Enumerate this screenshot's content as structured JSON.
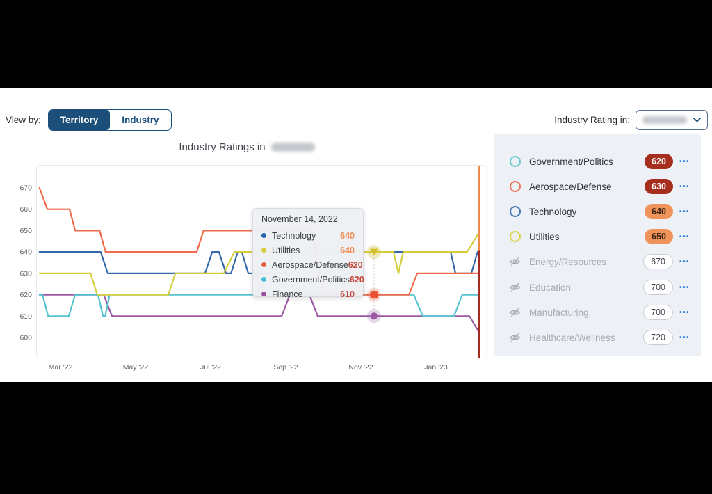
{
  "header": {
    "view_by_label": "View by:",
    "toggle": [
      {
        "label": "Territory",
        "selected": true
      },
      {
        "label": "Industry",
        "selected": false
      }
    ],
    "rating_in_label": "Industry Rating in:",
    "rating_in_value_redacted": true
  },
  "title": {
    "text": "Industry Ratings in",
    "suffix_redacted": true
  },
  "sidebar": {
    "more_label": "•••",
    "items": [
      {
        "label": "Government/Politics",
        "value": "620",
        "state": "visible",
        "color": "#6cc9cf",
        "badge": "dark-red"
      },
      {
        "label": "Aerospace/Defense",
        "value": "630",
        "state": "visible",
        "color": "#ee7257",
        "badge": "dark-red"
      },
      {
        "label": "Technology",
        "value": "640",
        "state": "visible",
        "color": "#4076b4",
        "badge": "orange"
      },
      {
        "label": "Utilities",
        "value": "650",
        "state": "visible",
        "color": "#d9d34c",
        "badge": "orange"
      },
      {
        "label": "Energy/Resources",
        "value": "670",
        "state": "hidden",
        "badge": "outline"
      },
      {
        "label": "Education",
        "value": "700",
        "state": "hidden",
        "badge": "outline"
      },
      {
        "label": "Manufacturing",
        "value": "700",
        "state": "hidden",
        "badge": "outline"
      },
      {
        "label": "Healthcare/Wellness",
        "value": "720",
        "state": "hidden",
        "badge": "outline"
      }
    ]
  },
  "tooltip": {
    "date": "November 14, 2022",
    "rows": [
      {
        "label": "Technology",
        "value": "640",
        "dot": "#2563ac",
        "value_color": "#ef8a50"
      },
      {
        "label": "Utilities",
        "value": "640",
        "dot": "#d5cf3d",
        "value_color": "#ef8a50"
      },
      {
        "label": "Aerospace/Defense",
        "value": "620",
        "dot": "#e85b3a",
        "value_color": "#c5473b"
      },
      {
        "label": "Government/Politics",
        "value": "620",
        "dot": "#45bdd1",
        "value_color": "#c5473b"
      },
      {
        "label": "Finance",
        "value": "610",
        "dot": "#9b4f9e",
        "value_color": "#c5473b"
      }
    ]
  },
  "chart_data": {
    "type": "line",
    "title": "Industry Ratings in (location redacted)",
    "x_axis": {
      "ticks": [
        "Mar '22",
        "May '22",
        "Jul '22",
        "Sep '22",
        "Nov '22",
        "Jan '23"
      ],
      "tick_m": [
        0,
        2,
        4,
        6,
        8,
        10
      ]
    },
    "y_axis": {
      "ticks": [
        670,
        660,
        650,
        640,
        630,
        620,
        610,
        600
      ],
      "range": [
        595,
        680
      ],
      "grid": false
    },
    "series": [
      {
        "name": "Finance",
        "color": "#9c58a3",
        "points": [
          [
            -0.56,
            620
          ],
          [
            1.15,
            620
          ],
          [
            1.37,
            610
          ],
          [
            5.89,
            610
          ],
          [
            6.11,
            620
          ],
          [
            6.63,
            620
          ],
          [
            6.85,
            610
          ],
          [
            10.89,
            610
          ],
          [
            11.13,
            603
          ]
        ]
      },
      {
        "name": "Government/Politics",
        "color": "#56c3d0",
        "points": [
          [
            -0.56,
            620
          ],
          [
            -0.48,
            620
          ],
          [
            -0.33,
            610
          ],
          [
            0.22,
            610
          ],
          [
            0.39,
            620
          ],
          [
            1.0,
            620
          ],
          [
            1.13,
            610
          ],
          [
            1.19,
            610
          ],
          [
            1.31,
            620
          ],
          [
            9.41,
            620
          ],
          [
            9.65,
            610
          ],
          [
            10.48,
            610
          ],
          [
            10.7,
            620
          ],
          [
            11.15,
            620
          ]
        ]
      },
      {
        "name": "Technology",
        "color": "#3568ac",
        "points": [
          [
            -0.56,
            640
          ],
          [
            1.07,
            640
          ],
          [
            1.26,
            630
          ],
          [
            3.85,
            630
          ],
          [
            4.04,
            640
          ],
          [
            4.22,
            640
          ],
          [
            4.41,
            630
          ],
          [
            4.54,
            630
          ],
          [
            4.72,
            640
          ],
          [
            4.83,
            640
          ],
          [
            5.0,
            630
          ],
          [
            6.0,
            630
          ],
          [
            6.2,
            640
          ],
          [
            10.39,
            640
          ],
          [
            10.52,
            630
          ],
          [
            10.94,
            630
          ],
          [
            11.11,
            640
          ],
          [
            11.15,
            640
          ]
        ]
      },
      {
        "name": "Aerospace/Defense",
        "color": "#ee6a4a",
        "points": [
          [
            -0.56,
            670
          ],
          [
            -0.35,
            660
          ],
          [
            0.24,
            660
          ],
          [
            0.39,
            650
          ],
          [
            1.04,
            650
          ],
          [
            1.2,
            640
          ],
          [
            3.63,
            640
          ],
          [
            3.81,
            650
          ],
          [
            6.7,
            650
          ],
          [
            7.0,
            620
          ],
          [
            9.28,
            620
          ],
          [
            9.5,
            630
          ],
          [
            11.15,
            630
          ]
        ]
      },
      {
        "name": "Utilities",
        "color": "#d4ce3e",
        "points": [
          [
            -0.56,
            630
          ],
          [
            0.8,
            630
          ],
          [
            0.98,
            620
          ],
          [
            2.87,
            620
          ],
          [
            3.06,
            630
          ],
          [
            4.35,
            630
          ],
          [
            4.63,
            640
          ],
          [
            8.87,
            640
          ],
          [
            9.0,
            630
          ],
          [
            9.13,
            640
          ],
          [
            10.83,
            640
          ],
          [
            11.11,
            648
          ],
          [
            11.15,
            648
          ]
        ]
      }
    ],
    "hover": {
      "date": "November 14, 2022",
      "date_m": 8.35,
      "markers": [
        {
          "series": "Utilities",
          "shape": "triangle-down",
          "value": 640,
          "color": "#d2bf2d",
          "halo": "rgba(205,196,60,0.35)"
        },
        {
          "series": "Aerospace/Defense",
          "shape": "square",
          "value": 620,
          "color": "#e8502e",
          "halo": "rgba(232,80,46,0.22)"
        },
        {
          "series": "Finance",
          "shape": "circle",
          "value": 610,
          "color": "#9c58a3",
          "halo": "rgba(156,88,163,0.25)"
        }
      ]
    },
    "now_line": {
      "m": 11.15,
      "split_value": 640,
      "top_color": "#f08a4b",
      "bottom_color": "#a32c20"
    }
  }
}
